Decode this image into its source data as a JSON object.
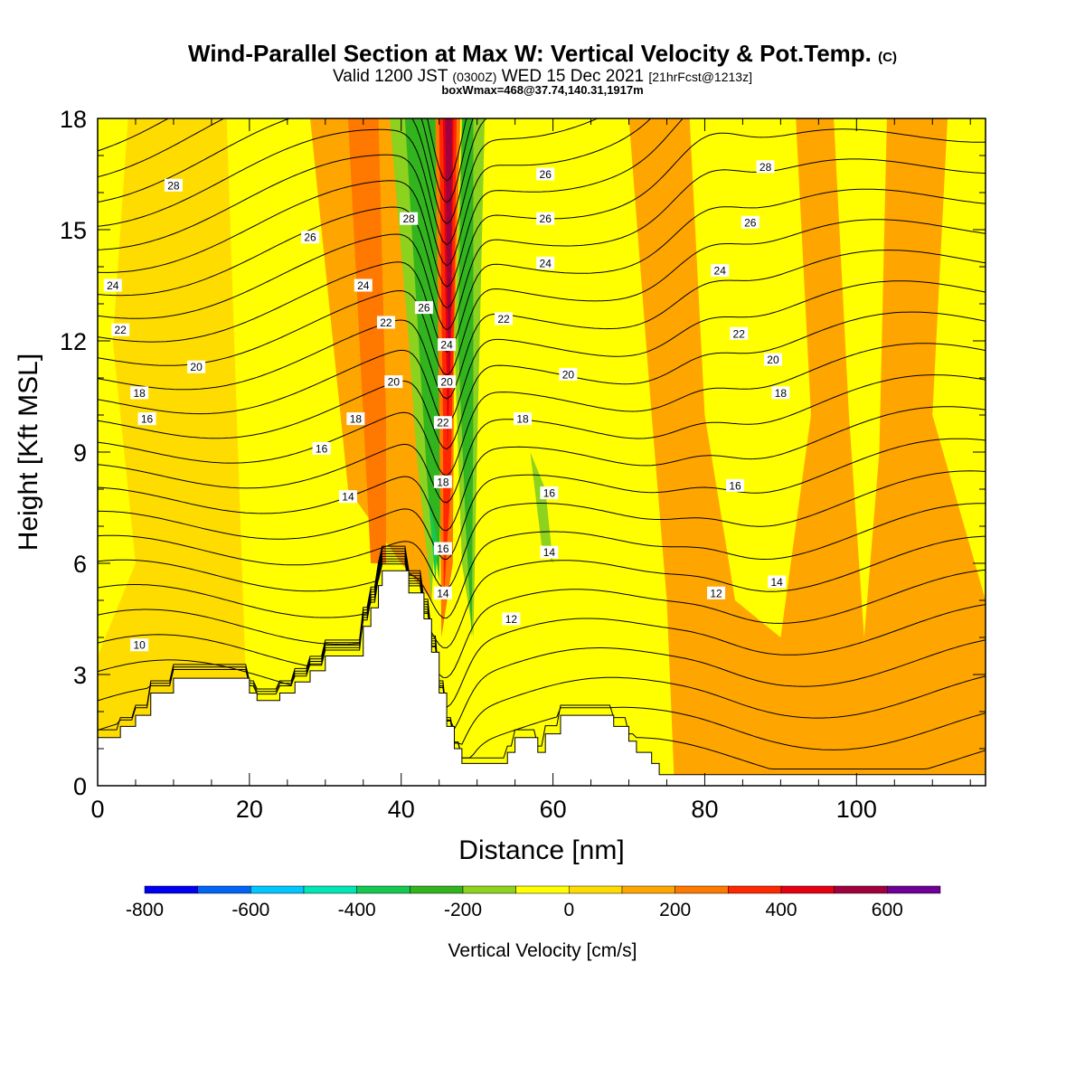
{
  "header": {
    "title_main": "Wind-Parallel Section at Max W: Vertical Velocity & Pot.Temp.",
    "title_copyright": "(C)",
    "valid_prefix": "Valid 1200 JST",
    "valid_utc": "(0300Z)",
    "valid_date": "WED 15 Dec 2021",
    "valid_fcst": "[21hrFcst@1213z]",
    "box_info": "boxWmax=468@37.74,140.31,1917m"
  },
  "chart_data": {
    "type": "contour",
    "xlabel": "Distance [nm]",
    "ylabel": "Height [Kft MSL]",
    "xlim": [
      0,
      117
    ],
    "ylim": [
      0,
      18
    ],
    "xticks": [
      0,
      20,
      40,
      60,
      80,
      100
    ],
    "yticks": [
      0,
      3,
      6,
      9,
      12,
      15,
      18
    ],
    "colorbar": {
      "label": "Vertical Velocity [cm/s]",
      "ticks": [
        -800,
        -600,
        -400,
        -200,
        0,
        200,
        400,
        600
      ],
      "levels": [
        -800,
        -700,
        -600,
        -500,
        -400,
        -300,
        -200,
        -100,
        0,
        100,
        200,
        300,
        400,
        500,
        600,
        700
      ],
      "colors": [
        "#0000f0",
        "#0064f5",
        "#00c8ff",
        "#00e6b4",
        "#14c850",
        "#32b41e",
        "#8cd21e",
        "#ffff00",
        "#ffdc00",
        "#ffa500",
        "#ff7800",
        "#ff2800",
        "#e60014",
        "#a0003c",
        "#6e0096"
      ]
    },
    "terrain": [
      [
        0,
        1.3
      ],
      [
        3,
        1.3
      ],
      [
        3,
        1.6
      ],
      [
        5,
        1.6
      ],
      [
        5,
        1.9
      ],
      [
        7,
        1.9
      ],
      [
        7,
        2.5
      ],
      [
        10,
        2.5
      ],
      [
        10,
        2.9
      ],
      [
        20,
        2.9
      ],
      [
        20,
        2.5
      ],
      [
        21,
        2.5
      ],
      [
        21,
        2.3
      ],
      [
        24,
        2.3
      ],
      [
        24,
        2.5
      ],
      [
        26,
        2.5
      ],
      [
        26,
        2.8
      ],
      [
        28,
        2.8
      ],
      [
        28,
        3.1
      ],
      [
        30,
        3.1
      ],
      [
        30,
        3.5
      ],
      [
        35,
        3.5
      ],
      [
        35,
        4.3
      ],
      [
        36,
        4.3
      ],
      [
        36,
        4.8
      ],
      [
        37,
        4.8
      ],
      [
        37,
        5.4
      ],
      [
        37.5,
        5.4
      ],
      [
        37.5,
        5.8
      ],
      [
        41,
        5.8
      ],
      [
        41,
        5.2
      ],
      [
        43,
        5.2
      ],
      [
        43,
        4.5
      ],
      [
        44,
        4.5
      ],
      [
        44,
        3.6
      ],
      [
        45,
        3.6
      ],
      [
        45,
        2.5
      ],
      [
        46,
        2.5
      ],
      [
        46,
        1.6
      ],
      [
        47,
        1.6
      ],
      [
        47,
        1.0
      ],
      [
        48,
        1.0
      ],
      [
        48,
        0.6
      ],
      [
        54,
        0.6
      ],
      [
        54,
        0.9
      ],
      [
        55,
        0.9
      ],
      [
        55,
        1.3
      ],
      [
        58,
        1.3
      ],
      [
        58,
        0.9
      ],
      [
        59,
        0.9
      ],
      [
        59,
        1.4
      ],
      [
        61,
        1.4
      ],
      [
        61,
        1.9
      ],
      [
        68,
        1.9
      ],
      [
        68,
        1.6
      ],
      [
        70,
        1.6
      ],
      [
        70,
        1.2
      ],
      [
        71,
        1.2
      ],
      [
        71,
        0.9
      ],
      [
        73,
        0.9
      ],
      [
        73,
        0.6
      ],
      [
        74,
        0.6
      ],
      [
        74,
        0.3
      ],
      [
        117,
        0.3
      ]
    ],
    "regions": [
      {
        "level": "0-100",
        "points": [
          [
            0,
            0
          ],
          [
            20,
            0
          ],
          [
            17,
            18
          ],
          [
            0,
            18
          ]
        ]
      },
      {
        "level": "100-200",
        "points": [
          [
            28,
            18
          ],
          [
            33,
            8
          ],
          [
            40,
            6
          ],
          [
            44,
            5
          ],
          [
            45,
            18
          ]
        ]
      },
      {
        "level": "100-200",
        "points": [
          [
            70,
            18
          ],
          [
            73,
            10
          ],
          [
            75,
            5
          ],
          [
            76,
            0
          ],
          [
            117,
            0
          ],
          [
            117,
            5
          ],
          [
            110,
            10
          ],
          [
            112,
            18
          ]
        ]
      },
      {
        "level": "-100-0",
        "points": [
          [
            0,
            3.5
          ],
          [
            5,
            6
          ],
          [
            2,
            12
          ],
          [
            4,
            18
          ],
          [
            0,
            18
          ]
        ]
      },
      {
        "level": "-100-0",
        "points": [
          [
            19,
            18
          ],
          [
            22,
            9
          ],
          [
            24,
            4
          ],
          [
            27,
            4
          ],
          [
            28,
            10
          ],
          [
            26,
            18
          ]
        ]
      },
      {
        "level": "-100-0",
        "points": [
          [
            54,
            18
          ],
          [
            53,
            12
          ],
          [
            56,
            6
          ],
          [
            62,
            4
          ],
          [
            65,
            9
          ],
          [
            66,
            18
          ]
        ]
      },
      {
        "level": "-100-0",
        "points": [
          [
            78,
            18
          ],
          [
            80,
            10
          ],
          [
            84,
            5
          ],
          [
            90,
            4
          ],
          [
            94,
            10
          ],
          [
            92,
            18
          ]
        ]
      },
      {
        "level": "-100-0",
        "points": [
          [
            97,
            18
          ],
          [
            99,
            10
          ],
          [
            101,
            4
          ],
          [
            103,
            9
          ],
          [
            104,
            18
          ]
        ]
      },
      {
        "level": "200-300",
        "points": [
          [
            33,
            18
          ],
          [
            35,
            10
          ],
          [
            36,
            6
          ],
          [
            38,
            6
          ],
          [
            38,
            10
          ],
          [
            37,
            18
          ]
        ]
      },
      {
        "level": "-200--100",
        "points": [
          [
            38.5,
            18
          ],
          [
            41,
            12
          ],
          [
            42,
            9
          ],
          [
            44,
            5
          ],
          [
            45,
            9
          ],
          [
            45,
            18
          ]
        ]
      },
      {
        "level": "-200--100",
        "points": [
          [
            48,
            18
          ],
          [
            47,
            12
          ],
          [
            48,
            6
          ],
          [
            49.5,
            4
          ],
          [
            50,
            9
          ],
          [
            51,
            18
          ]
        ]
      },
      {
        "level": "-200--100",
        "points": [
          [
            57,
            9
          ],
          [
            59,
            8
          ],
          [
            60,
            6
          ],
          [
            58.5,
            6.5
          ]
        ]
      },
      {
        "level": "-300--200",
        "points": [
          [
            40.5,
            18
          ],
          [
            42,
            13
          ],
          [
            43.5,
            8
          ],
          [
            45,
            5.5
          ],
          [
            45.3,
            9
          ],
          [
            45,
            18
          ]
        ]
      },
      {
        "level": "-300--200",
        "points": [
          [
            48,
            18
          ],
          [
            47.5,
            12
          ],
          [
            48.5,
            7
          ],
          [
            49.3,
            4
          ],
          [
            49.5,
            10
          ],
          [
            49.5,
            18
          ]
        ]
      },
      {
        "level": "-400--300",
        "points": [
          [
            43.5,
            8
          ],
          [
            44.5,
            5.5
          ],
          [
            44.8,
            6.5
          ]
        ]
      },
      {
        "level": "200-300",
        "points": [
          [
            44.5,
            18
          ],
          [
            45,
            10
          ],
          [
            45.3,
            4
          ],
          [
            46.8,
            6
          ],
          [
            47,
            12
          ],
          [
            47.8,
            18
          ]
        ]
      },
      {
        "level": "300-400",
        "points": [
          [
            45,
            18
          ],
          [
            45.5,
            10
          ],
          [
            45.6,
            5
          ],
          [
            46.5,
            8
          ],
          [
            47,
            13
          ],
          [
            47.3,
            18
          ]
        ]
      },
      {
        "level": "400-500",
        "points": [
          [
            45.5,
            18
          ],
          [
            45.9,
            12
          ],
          [
            46.1,
            9
          ],
          [
            46.6,
            12
          ],
          [
            46.9,
            18
          ]
        ]
      },
      {
        "level": "500-600",
        "points": [
          [
            45.8,
            18
          ],
          [
            46,
            14
          ],
          [
            46.3,
            11
          ],
          [
            46.6,
            14
          ],
          [
            46.7,
            18
          ]
        ]
      }
    ],
    "theta_contours": [
      {
        "level": 10,
        "label_at": [
          5.5,
          3.8
        ]
      },
      {
        "level": 12,
        "label_at": [
          54.5,
          4.5
        ]
      },
      {
        "level": 12,
        "label_at": [
          81.5,
          5.2
        ]
      },
      {
        "level": 14,
        "label_at": [
          33,
          7.8
        ]
      },
      {
        "level": 14,
        "label_at": [
          45.5,
          5.2
        ]
      },
      {
        "level": 14,
        "label_at": [
          59.5,
          6.3
        ]
      },
      {
        "level": 14,
        "label_at": [
          89.5,
          5.5
        ]
      },
      {
        "level": 16,
        "label_at": [
          6.5,
          9.9
        ]
      },
      {
        "level": 16,
        "label_at": [
          29.5,
          9.1
        ]
      },
      {
        "level": 16,
        "label_at": [
          45.5,
          6.4
        ]
      },
      {
        "level": 16,
        "label_at": [
          59.5,
          7.9
        ]
      },
      {
        "level": 16,
        "label_at": [
          84,
          8.1
        ]
      },
      {
        "level": 18,
        "label_at": [
          5.5,
          10.6
        ]
      },
      {
        "level": 18,
        "label_at": [
          34,
          9.9
        ]
      },
      {
        "level": 18,
        "label_at": [
          45.5,
          8.2
        ]
      },
      {
        "level": 18,
        "label_at": [
          56,
          9.9
        ]
      },
      {
        "level": 18,
        "label_at": [
          90,
          10.6
        ]
      },
      {
        "level": 20,
        "label_at": [
          13,
          11.3
        ]
      },
      {
        "level": 20,
        "label_at": [
          39,
          10.9
        ]
      },
      {
        "level": 20,
        "label_at": [
          46,
          10.9
        ]
      },
      {
        "level": 20,
        "label_at": [
          62,
          11.1
        ]
      },
      {
        "level": 20,
        "label_at": [
          89,
          11.5
        ]
      },
      {
        "level": 22,
        "label_at": [
          3,
          12.3
        ]
      },
      {
        "level": 22,
        "label_at": [
          38,
          12.5
        ]
      },
      {
        "level": 22,
        "label_at": [
          45.5,
          9.8
        ]
      },
      {
        "level": 22,
        "label_at": [
          53.5,
          12.6
        ]
      },
      {
        "level": 22,
        "label_at": [
          84.5,
          12.2
        ]
      },
      {
        "level": 24,
        "label_at": [
          2,
          13.5
        ]
      },
      {
        "level": 24,
        "label_at": [
          35,
          13.5
        ]
      },
      {
        "level": 24,
        "label_at": [
          46,
          11.9
        ]
      },
      {
        "level": 24,
        "label_at": [
          59,
          14.1
        ]
      },
      {
        "level": 24,
        "label_at": [
          82,
          13.9
        ]
      },
      {
        "level": 26,
        "label_at": [
          28,
          14.8
        ]
      },
      {
        "level": 26,
        "label_at": [
          43,
          12.9
        ]
      },
      {
        "level": 26,
        "label_at": [
          59,
          16.5
        ]
      },
      {
        "level": 26,
        "label_at": [
          59,
          15.3
        ]
      },
      {
        "level": 26,
        "label_at": [
          86,
          15.2
        ]
      },
      {
        "level": 28,
        "label_at": [
          10,
          16.2
        ]
      },
      {
        "level": 28,
        "label_at": [
          41,
          15.3
        ]
      },
      {
        "level": 28,
        "label_at": [
          88,
          16.7
        ]
      }
    ]
  }
}
